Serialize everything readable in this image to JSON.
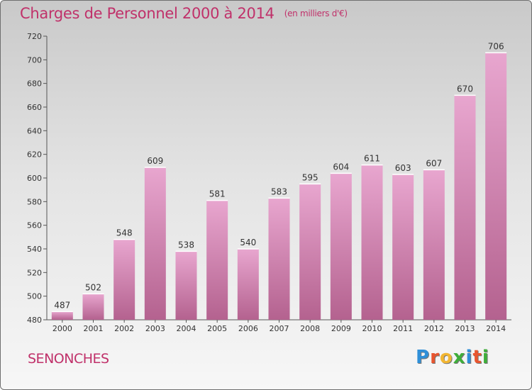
{
  "header": {
    "title": "Charges de Personnel 2000 à 2014",
    "subtitle": "(en milliers d'€)"
  },
  "footer": {
    "city": "SENONCHES",
    "logo_letters": [
      "P",
      "r",
      "o",
      "x",
      "i",
      "t",
      "i"
    ],
    "logo_colors": [
      "#2f8fd8",
      "#e8552f",
      "#f2b632",
      "#3fae3a",
      "#2f8fd8",
      "#e8552f",
      "#3fae3a"
    ]
  },
  "chart_data": {
    "type": "bar",
    "title": "Charges de Personnel 2000 à 2014",
    "subtitle": "(en milliers d'€)",
    "categories": [
      "2000",
      "2001",
      "2002",
      "2003",
      "2004",
      "2005",
      "2006",
      "2007",
      "2008",
      "2009",
      "2010",
      "2011",
      "2012",
      "2013",
      "2014"
    ],
    "values": [
      487,
      502,
      548,
      609,
      538,
      581,
      540,
      583,
      595,
      604,
      611,
      603,
      607,
      670,
      706
    ],
    "ylim": [
      480,
      720
    ],
    "yticks": [
      480,
      500,
      520,
      540,
      560,
      580,
      600,
      620,
      640,
      660,
      680,
      700,
      720
    ],
    "xlabel": "",
    "ylabel": "",
    "bar_color_top": "#e8a6cf",
    "bar_color_bottom": "#b4628f",
    "grid": false
  }
}
